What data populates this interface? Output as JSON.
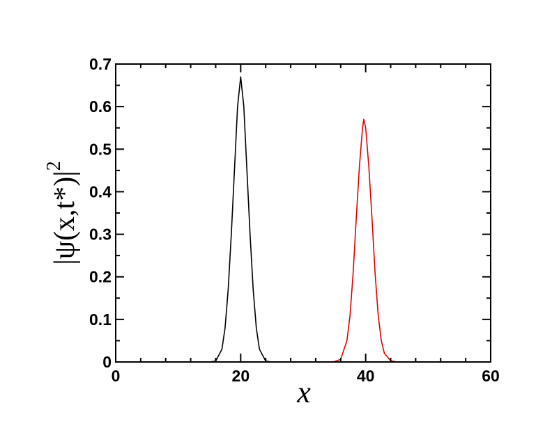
{
  "chart_data": {
    "type": "line",
    "title": "",
    "xlabel": "x",
    "ylabel": "|ψ(x,t*)|",
    "ylabel_superscript": "2",
    "xlim": [
      0,
      60
    ],
    "ylim": [
      0,
      0.7
    ],
    "x_ticks": [
      0,
      20,
      40,
      60
    ],
    "x_tick_labels": [
      "0",
      "20",
      "40",
      "60"
    ],
    "y_ticks": [
      0,
      0.1,
      0.2,
      0.3,
      0.4,
      0.5,
      0.6,
      0.7
    ],
    "y_tick_labels": [
      "0",
      "0.1",
      "0.2",
      "0.3",
      "0.4",
      "0.5",
      "0.6",
      "0.7"
    ],
    "grid": false,
    "legend": "none",
    "x": [
      0,
      15,
      16,
      17,
      17.5,
      18,
      18.5,
      19,
      19.5,
      20,
      20.5,
      21,
      21.5,
      22,
      22.5,
      23,
      24,
      25,
      34,
      35,
      36,
      37,
      37.5,
      38,
      38.5,
      39,
      39.5,
      39.7,
      40,
      40.5,
      41,
      41.5,
      42,
      42.5,
      43,
      44,
      45,
      60
    ],
    "series": [
      {
        "color": "#000000",
        "values": [
          0,
          0,
          0.002,
          0.03,
          0.08,
          0.17,
          0.3,
          0.45,
          0.6,
          0.67,
          0.6,
          0.45,
          0.3,
          0.17,
          0.08,
          0.03,
          0.002,
          0,
          0,
          0,
          0,
          0,
          0,
          0,
          0,
          0,
          0,
          0,
          0,
          0,
          0,
          0,
          0,
          0,
          0,
          0,
          0,
          0
        ]
      },
      {
        "color": "#e00000",
        "values": [
          0,
          0,
          0,
          0,
          0,
          0,
          0,
          0,
          0,
          0,
          0,
          0,
          0,
          0,
          0,
          0,
          0,
          0,
          0,
          0.001,
          0.006,
          0.05,
          0.11,
          0.21,
          0.34,
          0.46,
          0.55,
          0.57,
          0.55,
          0.46,
          0.34,
          0.21,
          0.11,
          0.05,
          0.02,
          0.003,
          0,
          0
        ]
      }
    ]
  }
}
